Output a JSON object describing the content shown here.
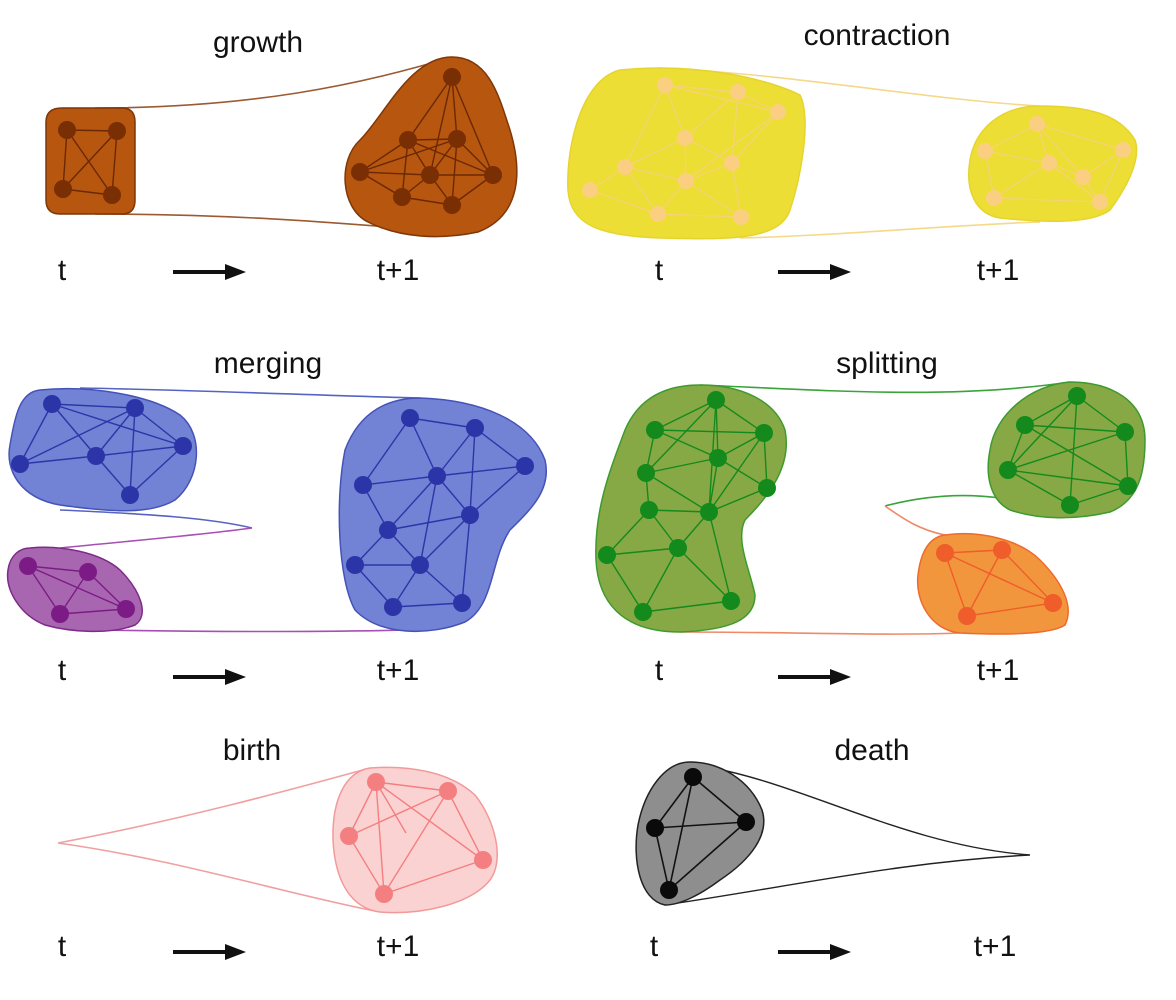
{
  "panels": [
    {
      "id": "growth",
      "title": "growth",
      "t_label": "t",
      "t1_label": "t+1",
      "fill": "#b7560f",
      "stroke": "#7e3708",
      "node": "#7a2e04",
      "edge": "#6a2804",
      "link": "#9b5a32"
    },
    {
      "id": "contraction",
      "title": "contraction",
      "t_label": "t",
      "t1_label": "t+1",
      "fill": "#ecde35",
      "stroke": "#e6d42e",
      "node": "#fbcf82",
      "edge": "#f6d27a",
      "link": "#f5d88a"
    },
    {
      "id": "merging",
      "title": "merging",
      "t_label": "t",
      "t1_label": "t+1",
      "fill": "#7282d4",
      "stroke": "#4553b8",
      "node": "#2c35a8",
      "edge": "#2c35a8",
      "link": "#5763c2",
      "fill2": "#a866b0",
      "stroke2": "#7d2a89",
      "node2": "#7c1b85",
      "link2": "#a650b3"
    },
    {
      "id": "splitting",
      "title": "splitting",
      "t_label": "t",
      "t1_label": "t+1",
      "fill": "#86a946",
      "stroke": "#3e9a2e",
      "node": "#14891c",
      "edge": "#14891c",
      "link": "#3aa33a",
      "fill2": "#f2963e",
      "stroke2": "#ee6a2e",
      "node2": "#ee5d2a",
      "link2": "#ee8a68"
    },
    {
      "id": "birth",
      "title": "birth",
      "t_label": "t",
      "t1_label": "t+1",
      "fill": "#fbd2d2",
      "stroke": "#f29a9a",
      "node": "#f47f80",
      "edge": "#f47f80",
      "link": "#f0a0a0"
    },
    {
      "id": "death",
      "title": "death",
      "t_label": "t",
      "t1_label": "t+1",
      "fill": "#8e8e8e",
      "stroke": "#222222",
      "node": "#0a0a0a",
      "edge": "#111111",
      "link": "#222222"
    }
  ],
  "icons": {
    "arrow": "right-arrow-icon"
  }
}
